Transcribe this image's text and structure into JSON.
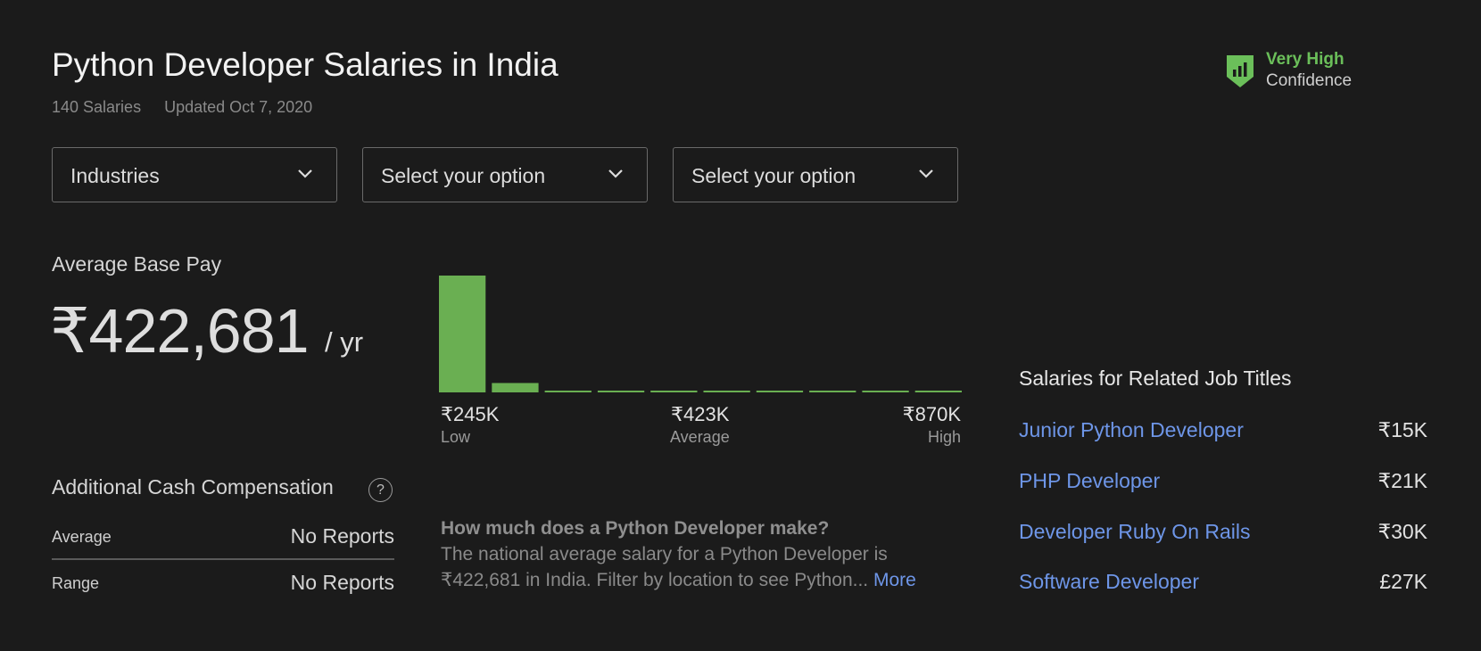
{
  "header": {
    "title": "Python Developer Salaries in India",
    "salary_count": "140 Salaries",
    "updated": "Updated Oct 7, 2020"
  },
  "confidence": {
    "level": "Very High",
    "label": "Confidence",
    "icon": "shield-bars-icon",
    "color": "#6bbf5a"
  },
  "filters": [
    {
      "value": "Industries",
      "icon": "chevron-down-icon"
    },
    {
      "value": "Select your option",
      "icon": "chevron-down-icon"
    },
    {
      "value": "Select your option",
      "icon": "chevron-down-icon"
    }
  ],
  "base_pay": {
    "label": "Average Base Pay",
    "value": "₹422,681",
    "unit": "/ yr"
  },
  "chart_data": {
    "type": "bar",
    "values": [
      100,
      8,
      1,
      1,
      1,
      1,
      1,
      1,
      1,
      1
    ],
    "color": "#6aaf52",
    "low": {
      "value": "₹245K",
      "label": "Low"
    },
    "average": {
      "value": "₹423K",
      "label": "Average"
    },
    "high": {
      "value": "₹870K",
      "label": "High"
    }
  },
  "additional_cash": {
    "title": "Additional Cash Compensation",
    "help_icon": "?",
    "rows": [
      {
        "label": "Average",
        "value": "No Reports"
      },
      {
        "label": "Range",
        "value": "No Reports"
      }
    ]
  },
  "description": {
    "question": "How much does a Python Developer make?",
    "text": "The national average salary for a Python Developer is ₹422,681 in India. Filter by location to see Python...",
    "more": "More"
  },
  "related": {
    "title": "Salaries for Related Job Titles",
    "items": [
      {
        "name": "Junior Python Developer",
        "value": "₹15K"
      },
      {
        "name": "PHP Developer",
        "value": "₹21K"
      },
      {
        "name": "Developer Ruby On Rails",
        "value": "₹30K"
      },
      {
        "name": "Software Developer",
        "value": "£27K"
      }
    ]
  },
  "colors": {
    "background": "#1b1b1b",
    "accent_green": "#6bbf5a",
    "link_blue": "#6e96e8"
  }
}
